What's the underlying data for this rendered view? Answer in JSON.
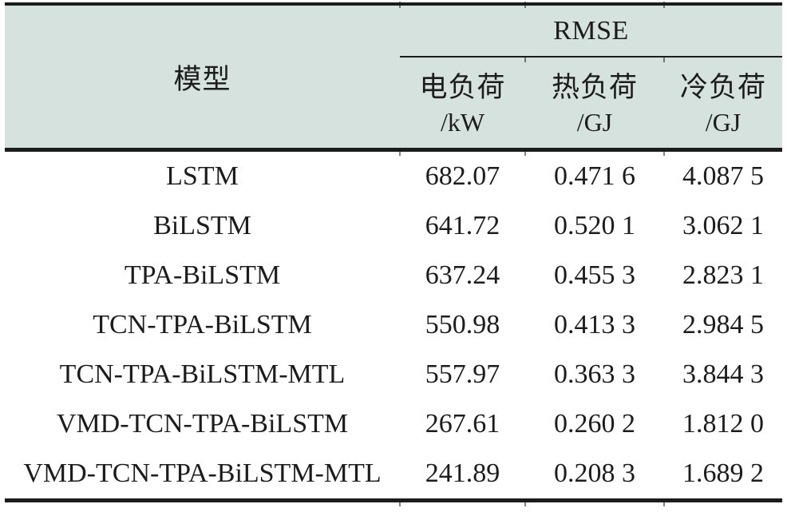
{
  "chart_data": {
    "type": "table",
    "group_header": "RMSE",
    "model_column_label": "模型",
    "sub_columns": [
      {
        "label": "电负荷",
        "unit": "/kW"
      },
      {
        "label": "热负荷",
        "unit": "/GJ"
      },
      {
        "label": "冷负荷",
        "unit": "/GJ"
      }
    ],
    "rows": [
      {
        "model": "LSTM",
        "electric_kw": "682.07",
        "heat_gj": "0.471 6",
        "cool_gj": "4.087 5"
      },
      {
        "model": "BiLSTM",
        "electric_kw": "641.72",
        "heat_gj": "0.520 1",
        "cool_gj": "3.062 1"
      },
      {
        "model": "TPA-BiLSTM",
        "electric_kw": "637.24",
        "heat_gj": "0.455 3",
        "cool_gj": "2.823 1"
      },
      {
        "model": "TCN-TPA-BiLSTM",
        "electric_kw": "550.98",
        "heat_gj": "0.413 3",
        "cool_gj": "2.984 5"
      },
      {
        "model": "TCN-TPA-BiLSTM-MTL",
        "electric_kw": "557.97",
        "heat_gj": "0.363 3",
        "cool_gj": "3.844 3"
      },
      {
        "model": "VMD-TCN-TPA-BiLSTM",
        "electric_kw": "267.61",
        "heat_gj": "0.260 2",
        "cool_gj": "1.812 0"
      },
      {
        "model": "VMD-TCN-TPA-BiLSTM-MTL",
        "electric_kw": "241.89",
        "heat_gj": "0.208 3",
        "cool_gj": "1.689 2"
      }
    ],
    "layout": {
      "grid": "horizontal rules only, notched column ticks",
      "legend": "none"
    }
  },
  "colors": {
    "header_bg": "#d6e2de",
    "rule": "#1c1c1c",
    "text": "#1c1c1c",
    "body_bg": "#ffffff"
  }
}
